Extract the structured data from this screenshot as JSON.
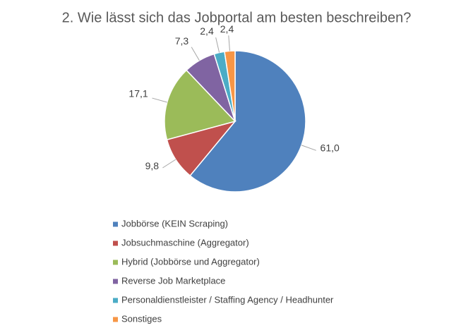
{
  "chart_data": {
    "type": "pie",
    "title": "2. Wie lässt sich das Jobportal am besten beschreiben?",
    "categories": [
      "Jobbörse (KEIN Scraping)",
      "Jobsuchmaschine (Aggregator)",
      "Hybrid (Jobbörse und Aggregator)",
      "Reverse Job Marketplace",
      "Personaldienstleister / Staffing Agency / Headhunter",
      "Sonstiges"
    ],
    "values": [
      61.0,
      9.8,
      17.1,
      7.3,
      2.4,
      2.4
    ],
    "value_labels": [
      "61,0",
      "9,8",
      "17,1",
      "7,3",
      "2,4",
      "2,4"
    ],
    "colors": [
      "#4f81bd",
      "#c0504d",
      "#9bbb59",
      "#8064a2",
      "#4bacc6",
      "#f79646"
    ],
    "legend": "bottom"
  }
}
